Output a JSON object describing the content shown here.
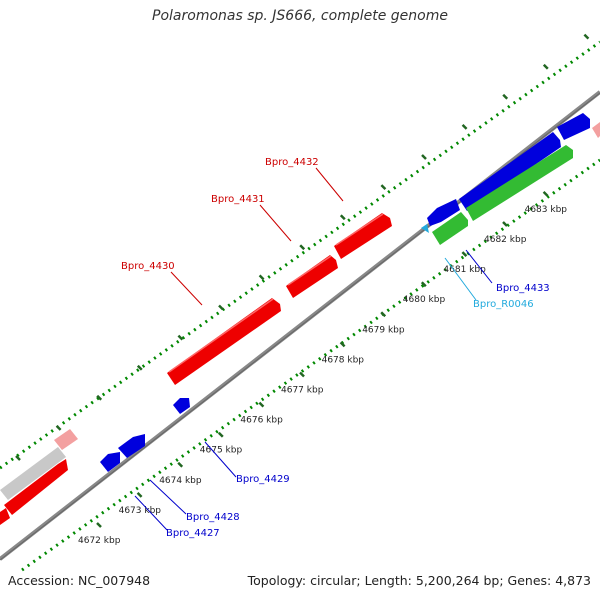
{
  "title": "Polaromonas sp. JS666, complete genome",
  "footer": {
    "accession": "Accession: NC_007948",
    "summary": "Topology: circular; Length: 5,200,264 bp; Genes: 4,873"
  },
  "colors": {
    "forward_gene": "#ee0000",
    "reverse_gene": "#0000dd",
    "rna": "#33bb33",
    "backbone": "#888888",
    "tick_dots": "#008800",
    "tick_marks": "#226622",
    "label_forward": "#cc0000",
    "label_reverse": "#0000cc",
    "label_rna": "#22aadd",
    "faded_forward": "#f3a0a0",
    "faded_other": "#c8c8c8"
  },
  "ticks": [
    {
      "label": "4672 kbp",
      "kbp": 4672
    },
    {
      "label": "4673 kbp",
      "kbp": 4673
    },
    {
      "label": "4674 kbp",
      "kbp": 4674
    },
    {
      "label": "4675 kbp",
      "kbp": 4675
    },
    {
      "label": "4676 kbp",
      "kbp": 4676
    },
    {
      "label": "4677 kbp",
      "kbp": 4677
    },
    {
      "label": "4678 kbp",
      "kbp": 4678
    },
    {
      "label": "4679 kbp",
      "kbp": 4679
    },
    {
      "label": "4680 kbp",
      "kbp": 4680
    },
    {
      "label": "4681 kbp",
      "kbp": 4681
    },
    {
      "label": "4682 kbp",
      "kbp": 4682
    },
    {
      "label": "4683 kbp",
      "kbp": 4683
    }
  ],
  "genes": [
    {
      "name": "Bpro_4427",
      "strand": "reverse",
      "color": "#0000dd"
    },
    {
      "name": "Bpro_4428",
      "strand": "reverse",
      "color": "#0000dd"
    },
    {
      "name": "Bpro_4429",
      "strand": "reverse",
      "color": "#0000dd"
    },
    {
      "name": "Bpro_4430",
      "strand": "forward",
      "color": "#ee0000"
    },
    {
      "name": "Bpro_4431",
      "strand": "forward",
      "color": "#ee0000"
    },
    {
      "name": "Bpro_4432",
      "strand": "forward",
      "color": "#ee0000"
    },
    {
      "name": "Bpro_4433",
      "strand": "reverse",
      "color": "#0000dd"
    },
    {
      "name": "Bpro_R0046",
      "strand": "reverse",
      "color": "#22aadd"
    }
  ]
}
